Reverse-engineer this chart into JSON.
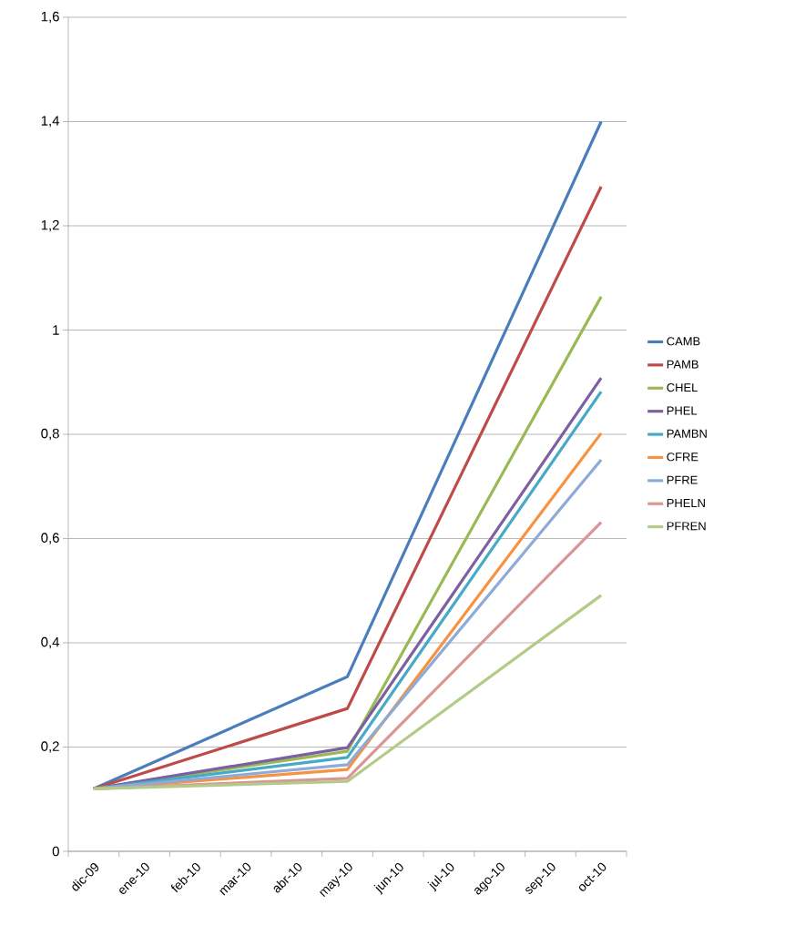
{
  "chart_data": {
    "type": "line",
    "categories": [
      "dic-09",
      "ene-10",
      "feb-10",
      "mar-10",
      "abr-10",
      "may-10",
      "jun-10",
      "jul-10",
      "ago-10",
      "sep-10",
      "oct-10"
    ],
    "series": [
      {
        "name": "CAMB",
        "color": "#4a7ebb",
        "values": [
          0.12,
          null,
          null,
          null,
          null,
          0.335,
          null,
          null,
          null,
          null,
          1.4
        ]
      },
      {
        "name": "PAMB",
        "color": "#be4b48",
        "values": [
          0.12,
          null,
          null,
          null,
          null,
          0.274,
          null,
          null,
          null,
          null,
          1.275
        ]
      },
      {
        "name": "CHEL",
        "color": "#98b954",
        "values": [
          0.12,
          null,
          null,
          null,
          null,
          0.192,
          null,
          null,
          null,
          null,
          1.064
        ]
      },
      {
        "name": "PHEL",
        "color": "#7d60a0",
        "values": [
          0.12,
          null,
          null,
          null,
          null,
          0.199,
          null,
          null,
          null,
          null,
          0.908
        ]
      },
      {
        "name": "PAMBN",
        "color": "#46aac5",
        "values": [
          0.12,
          null,
          null,
          null,
          null,
          0.18,
          null,
          null,
          null,
          null,
          0.882
        ]
      },
      {
        "name": "CFRE",
        "color": "#f69240",
        "values": [
          0.12,
          null,
          null,
          null,
          null,
          0.157,
          null,
          null,
          null,
          null,
          0.802
        ]
      },
      {
        "name": "PFRE",
        "color": "#8eaad8",
        "values": [
          0.12,
          null,
          null,
          null,
          null,
          0.166,
          null,
          null,
          null,
          null,
          0.751
        ]
      },
      {
        "name": "PHELN",
        "color": "#d99694",
        "values": [
          0.12,
          null,
          null,
          null,
          null,
          0.14,
          null,
          null,
          null,
          null,
          0.631
        ]
      },
      {
        "name": "PFREN",
        "color": "#b3cb88",
        "values": [
          0.12,
          null,
          null,
          null,
          null,
          0.134,
          null,
          null,
          null,
          null,
          0.491
        ]
      }
    ],
    "ylim": [
      0,
      1.6
    ],
    "yticks": [
      0,
      {
        "value": 0.2,
        "label": "0,2"
      },
      {
        "value": 0.4,
        "label": "0,4"
      },
      {
        "value": 0.6,
        "label": "0,6"
      },
      {
        "value": 0.8,
        "label": "0,8"
      },
      1,
      {
        "value": 1.2,
        "label": "1,2"
      },
      {
        "value": 1.4,
        "label": "1,4"
      },
      {
        "value": 1.6,
        "label": "1,6"
      }
    ],
    "grid": "y",
    "legend": "right",
    "marker": "none",
    "line_style": "solid"
  }
}
